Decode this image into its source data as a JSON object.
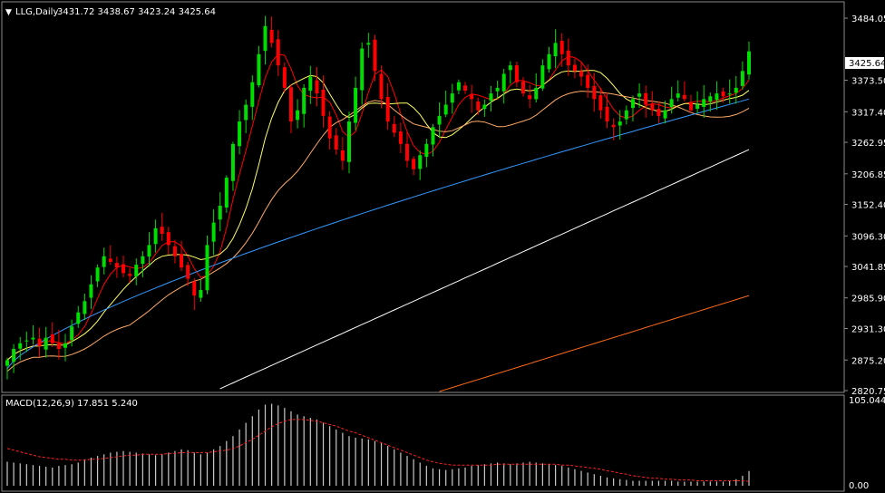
{
  "header": {
    "symbol": "LLG,Daily",
    "ohlc": "3431.72 3438.67 3423.24 3425.64"
  },
  "price_axis": {
    "ticks": [
      "3484.05",
      "3373.50",
      "3317.40",
      "3262.95",
      "3206.85",
      "3152.40",
      "3096.30",
      "3041.85",
      "2985.90",
      "2931.30",
      "2875.20",
      "2820.75"
    ],
    "current": "3425.64"
  },
  "macd_panel": {
    "label": "MACD(12,26,9) 17.851 5.240",
    "top_tick": "105.044",
    "bottom_tick": "0.00"
  },
  "colors": {
    "background": "#000000",
    "bull": "#00dd00",
    "bear": "#ff0000",
    "ma_fast": "#ff0000",
    "ma_10": "#ffff66",
    "ma_20": "#ffaa66",
    "ma_50": "#3399ff",
    "ma_100": "#ffffff",
    "ma_200": "#ff6a1a",
    "macd_hist": "#c8c8c8",
    "macd_signal": "#ff2020"
  },
  "chart_data": [
    {
      "type": "candlestick",
      "title": "LLG,Daily",
      "ylim": [
        2820.75,
        3510
      ],
      "close_path": [
        2875,
        2895,
        2905,
        2910,
        2915,
        2900,
        2915,
        2905,
        2895,
        2905,
        2935,
        2960,
        2980,
        3010,
        3040,
        3060,
        3050,
        3040,
        3030,
        3025,
        3045,
        3060,
        3080,
        3110,
        3100,
        3080,
        3060,
        3040,
        3020,
        2990,
        3000,
        3080,
        3120,
        3150,
        3200,
        3260,
        3300,
        3330,
        3370,
        3420,
        3470,
        3440,
        3400,
        3360,
        3300,
        3320,
        3360,
        3380,
        3350,
        3310,
        3270,
        3250,
        3230,
        3300,
        3360,
        3430,
        3440,
        3390,
        3340,
        3300,
        3280,
        3260,
        3230,
        3215,
        3240,
        3260,
        3290,
        3310,
        3330,
        3350,
        3370,
        3355,
        3340,
        3320,
        3330,
        3350,
        3360,
        3385,
        3400,
        3370,
        3350,
        3340,
        3360,
        3400,
        3420,
        3440,
        3420,
        3400,
        3390,
        3380,
        3360,
        3340,
        3320,
        3300,
        3290,
        3300,
        3320,
        3340,
        3350,
        3330,
        3320,
        3310,
        3320,
        3340,
        3350,
        3340,
        3320,
        3330,
        3340,
        3345,
        3350,
        3345,
        3350,
        3360,
        3390,
        3425
      ],
      "moving_averages_drawn": [
        "MA5",
        "MA10",
        "MA20",
        "MA50",
        "MA100",
        "MA200"
      ]
    },
    {
      "type": "bar",
      "title": "MACD(12,26,9) 17.851 5.240",
      "ylim": [
        0,
        105.044
      ],
      "series": [
        {
          "name": "MACD",
          "values": [
            29,
            28,
            27,
            26,
            25,
            24,
            23,
            22,
            24,
            25,
            26,
            28,
            32,
            34,
            36,
            38,
            40,
            41,
            42,
            41,
            40,
            39,
            38,
            37,
            38,
            40,
            42,
            44,
            43,
            40,
            38,
            40,
            44,
            48,
            54,
            60,
            68,
            76,
            84,
            92,
            98,
            99,
            97,
            94,
            90,
            86,
            84,
            82,
            80,
            76,
            72,
            68,
            64,
            60,
            58,
            57,
            56,
            54,
            52,
            48,
            44,
            40,
            36,
            32,
            28,
            24,
            21,
            20,
            19,
            20,
            21,
            22,
            24,
            25,
            26,
            27,
            28,
            27,
            26,
            27,
            28,
            29,
            28,
            27,
            26,
            25,
            24,
            22,
            20,
            18,
            16,
            14,
            12,
            10,
            9,
            8,
            7,
            6,
            6,
            6,
            6,
            6,
            6,
            6,
            5,
            5,
            5,
            5,
            5,
            5,
            5,
            5,
            6,
            8,
            12,
            17.851
          ]
        },
        {
          "name": "Signal",
          "values": [
            45,
            43,
            41,
            39,
            37,
            35,
            34,
            33,
            32,
            32,
            31,
            31,
            31,
            32,
            32,
            33,
            34,
            35,
            36,
            37,
            37,
            38,
            38,
            38,
            38,
            39,
            39,
            40,
            40,
            40,
            40,
            40,
            41,
            42,
            43,
            45,
            48,
            52,
            56,
            61,
            66,
            71,
            75,
            78,
            80,
            80,
            80,
            79,
            78,
            76,
            74,
            72,
            69,
            66,
            64,
            61,
            58,
            55,
            52,
            49,
            46,
            43,
            40,
            37,
            34,
            31,
            29,
            27,
            26,
            25,
            25,
            25,
            25,
            25,
            25,
            25,
            26,
            26,
            26,
            26,
            26,
            26,
            26,
            26,
            26,
            26,
            25,
            25,
            24,
            23,
            22,
            21,
            20,
            18,
            17,
            15,
            14,
            12,
            11,
            10,
            9,
            9,
            8,
            8,
            7,
            7,
            7,
            6,
            6,
            6,
            6,
            6,
            6,
            6,
            6,
            5.24
          ]
        }
      ]
    }
  ]
}
